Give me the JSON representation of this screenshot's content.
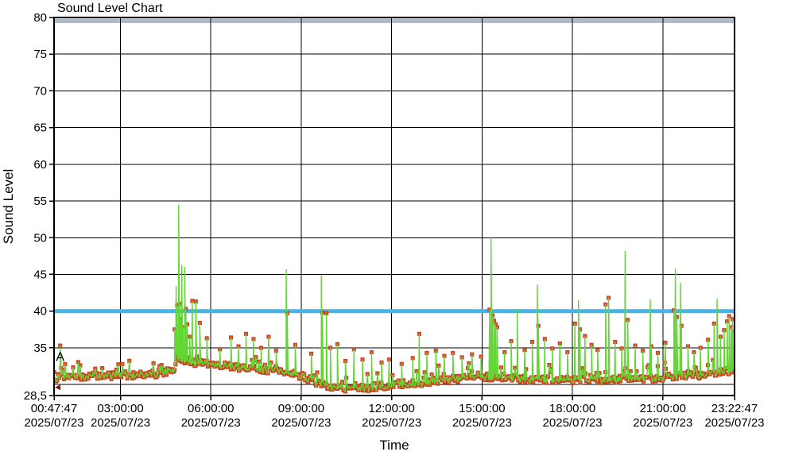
{
  "chart": {
    "title": "Sound Level Chart",
    "xlabel": "Time",
    "ylabel": "Sound Level"
  },
  "colors": {
    "background": "#ffffff",
    "grid": "#000000",
    "frame": "#000000",
    "top_band": "#b0b9c8",
    "threshold": "#44b5e9",
    "line_green": "#62d733",
    "marker_fill": "#e0512b",
    "marker_edge": "#bc3b1d",
    "cursor": "#7a170c",
    "text": "#000000"
  },
  "chart_data": {
    "type": "line",
    "title": "Sound Level Chart",
    "xlabel": "Time",
    "ylabel": "Sound Level",
    "date": "2025/07/23",
    "x_range_min": [
      47.7833,
      1402.7833
    ],
    "y_range": [
      28.5,
      80
    ],
    "grid": true,
    "x_ticks": [
      {
        "t": 47.7833,
        "time": "00:47:47",
        "date": "2025/07/23"
      },
      {
        "t": 180,
        "time": "03:00:00",
        "date": "2025/07/23"
      },
      {
        "t": 360,
        "time": "06:00:00",
        "date": "2025/07/23"
      },
      {
        "t": 540,
        "time": "09:00:00",
        "date": "2025/07/23"
      },
      {
        "t": 720,
        "time": "12:00:00",
        "date": "2025/07/23"
      },
      {
        "t": 900,
        "time": "15:00:00",
        "date": "2025/07/23"
      },
      {
        "t": 1080,
        "time": "18:00:00",
        "date": "2025/07/23"
      },
      {
        "t": 1260,
        "time": "21:00:00",
        "date": "2025/07/23"
      },
      {
        "t": 1402.7833,
        "time": "23:22:47",
        "date": "2025/07/23"
      }
    ],
    "y_ticks": [
      {
        "v": 80,
        "label": "80"
      },
      {
        "v": 75,
        "label": "75"
      },
      {
        "v": 70,
        "label": "70"
      },
      {
        "v": 65,
        "label": "65"
      },
      {
        "v": 60,
        "label": "60"
      },
      {
        "v": 55,
        "label": "55"
      },
      {
        "v": 50,
        "label": "50"
      },
      {
        "v": 45,
        "label": "45"
      },
      {
        "v": 40,
        "label": "40"
      },
      {
        "v": 35,
        "label": "35"
      },
      {
        "v": 28.5,
        "label": "28,5"
      }
    ],
    "x_gridlines": [
      180,
      360,
      540,
      720,
      900,
      1080,
      1260
    ],
    "y_gridlines": [
      75,
      70,
      65,
      60,
      55,
      50,
      45,
      40,
      35,
      30
    ],
    "threshold": {
      "value": 40
    },
    "annotations": [
      {
        "label": "A",
        "t": 50,
        "v": 33.2
      }
    ],
    "start_cursor": {
      "t": 47.7833,
      "v": 29.6
    },
    "series": [
      {
        "name": "sound-level",
        "sample_step_min": 2,
        "baseline_anchors": [
          [
            48,
            30.9
          ],
          [
            120,
            31.1
          ],
          [
            200,
            31.3
          ],
          [
            260,
            31.5
          ],
          [
            285,
            32.0
          ],
          [
            295,
            33.2
          ],
          [
            315,
            33.4
          ],
          [
            330,
            32.9
          ],
          [
            360,
            32.7
          ],
          [
            420,
            32.3
          ],
          [
            470,
            32.0
          ],
          [
            520,
            31.6
          ],
          [
            540,
            31.2
          ],
          [
            565,
            30.4
          ],
          [
            590,
            29.8
          ],
          [
            620,
            29.5
          ],
          [
            665,
            29.5
          ],
          [
            700,
            29.8
          ],
          [
            720,
            30.0
          ],
          [
            780,
            30.3
          ],
          [
            840,
            30.7
          ],
          [
            900,
            31.1
          ],
          [
            930,
            31.0
          ],
          [
            980,
            30.7
          ],
          [
            1040,
            30.6
          ],
          [
            1100,
            30.7
          ],
          [
            1160,
            30.7
          ],
          [
            1220,
            30.8
          ],
          [
            1270,
            31.0
          ],
          [
            1330,
            31.3
          ],
          [
            1380,
            31.7
          ],
          [
            1403,
            31.9
          ]
        ],
        "noise": {
          "seed": 42,
          "jitter": 1.0,
          "burst_prob": 0.2,
          "burst_max": 1.8,
          "floor": 28.8
        },
        "spikes": [
          [
            60,
            35.3,
            1
          ],
          [
            288,
            37.5,
            1
          ],
          [
            291,
            43.4,
            0
          ],
          [
            293,
            40.8,
            1
          ],
          [
            296,
            54.5,
            0
          ],
          [
            298,
            41.0,
            1
          ],
          [
            300,
            38.9,
            1
          ],
          [
            302,
            46.3,
            0
          ],
          [
            305,
            37.8,
            1
          ],
          [
            308,
            46.0,
            0
          ],
          [
            310,
            40.3,
            1
          ],
          [
            313,
            38.2,
            1
          ],
          [
            318,
            36.5,
            1
          ],
          [
            323,
            41.4,
            1
          ],
          [
            330,
            41.3,
            1
          ],
          [
            338,
            38.4,
            1
          ],
          [
            352,
            36.3,
            1
          ],
          [
            378,
            34.8,
            1
          ],
          [
            400,
            36.4,
            1
          ],
          [
            415,
            35.2,
            1
          ],
          [
            430,
            36.9,
            1
          ],
          [
            445,
            36.2,
            1
          ],
          [
            460,
            35.0,
            1
          ],
          [
            475,
            36.5,
            1
          ],
          [
            490,
            34.6,
            1
          ],
          [
            510,
            45.7,
            0
          ],
          [
            512,
            39.7,
            1
          ],
          [
            528,
            35.4,
            1
          ],
          [
            560,
            34.2,
            1
          ],
          [
            580,
            44.9,
            0
          ],
          [
            582,
            39.8,
            1
          ],
          [
            590,
            39.7,
            1
          ],
          [
            598,
            35.0,
            1
          ],
          [
            612,
            35.5,
            1
          ],
          [
            628,
            33.2,
            1
          ],
          [
            645,
            34.8,
            1
          ],
          [
            662,
            33.4,
            1
          ],
          [
            680,
            34.4,
            1
          ],
          [
            700,
            33.0,
            1
          ],
          [
            715,
            33.4,
            1
          ],
          [
            740,
            32.8,
            1
          ],
          [
            762,
            33.6,
            1
          ],
          [
            775,
            36.9,
            1
          ],
          [
            790,
            34.3,
            1
          ],
          [
            808,
            34.6,
            1
          ],
          [
            825,
            33.9,
            1
          ],
          [
            842,
            34.3,
            1
          ],
          [
            860,
            33.7,
            1
          ],
          [
            880,
            34.1,
            1
          ],
          [
            898,
            33.8,
            1
          ],
          [
            915,
            40.2,
            1
          ],
          [
            918,
            50.0,
            0
          ],
          [
            921,
            39.4,
            1
          ],
          [
            924,
            38.7,
            1
          ],
          [
            927,
            38.2,
            1
          ],
          [
            930,
            37.8,
            1
          ],
          [
            945,
            34.4,
            1
          ],
          [
            958,
            35.9,
            1
          ],
          [
            970,
            40.3,
            0
          ],
          [
            985,
            34.7,
            1
          ],
          [
            1000,
            35.8,
            1
          ],
          [
            1010,
            43.6,
            0
          ],
          [
            1012,
            38.0,
            1
          ],
          [
            1025,
            36.2,
            1
          ],
          [
            1040,
            34.9,
            1
          ],
          [
            1055,
            35.6,
            1
          ],
          [
            1070,
            34.4,
            1
          ],
          [
            1085,
            38.3,
            1
          ],
          [
            1092,
            41.5,
            0
          ],
          [
            1095,
            37.5,
            1
          ],
          [
            1105,
            36.6,
            1
          ],
          [
            1118,
            35.4,
            1
          ],
          [
            1130,
            34.7,
            1
          ],
          [
            1146,
            40.9,
            1
          ],
          [
            1152,
            41.8,
            1
          ],
          [
            1165,
            35.8,
            1
          ],
          [
            1178,
            34.9,
            1
          ],
          [
            1185,
            48.2,
            0
          ],
          [
            1190,
            38.8,
            1
          ],
          [
            1205,
            35.3,
            1
          ],
          [
            1220,
            34.6,
            1
          ],
          [
            1235,
            41.6,
            0
          ],
          [
            1237,
            35.2,
            1
          ],
          [
            1250,
            34.3,
            1
          ],
          [
            1265,
            35.7,
            1
          ],
          [
            1282,
            40.1,
            1
          ],
          [
            1285,
            45.8,
            0
          ],
          [
            1288,
            39.2,
            1
          ],
          [
            1295,
            43.9,
            0
          ],
          [
            1297,
            38.0,
            1
          ],
          [
            1310,
            35.2,
            1
          ],
          [
            1322,
            34.4,
            1
          ],
          [
            1335,
            35.0,
            1
          ],
          [
            1350,
            36.1,
            1
          ],
          [
            1362,
            38.3,
            1
          ],
          [
            1368,
            41.7,
            0
          ],
          [
            1375,
            36.5,
            1
          ],
          [
            1382,
            37.4,
            1
          ],
          [
            1388,
            38.6,
            1
          ],
          [
            1392,
            39.3,
            1
          ],
          [
            1396,
            37.8,
            1
          ],
          [
            1399,
            38.9,
            1
          ],
          [
            1402,
            37.2,
            1
          ]
        ]
      }
    ]
  }
}
